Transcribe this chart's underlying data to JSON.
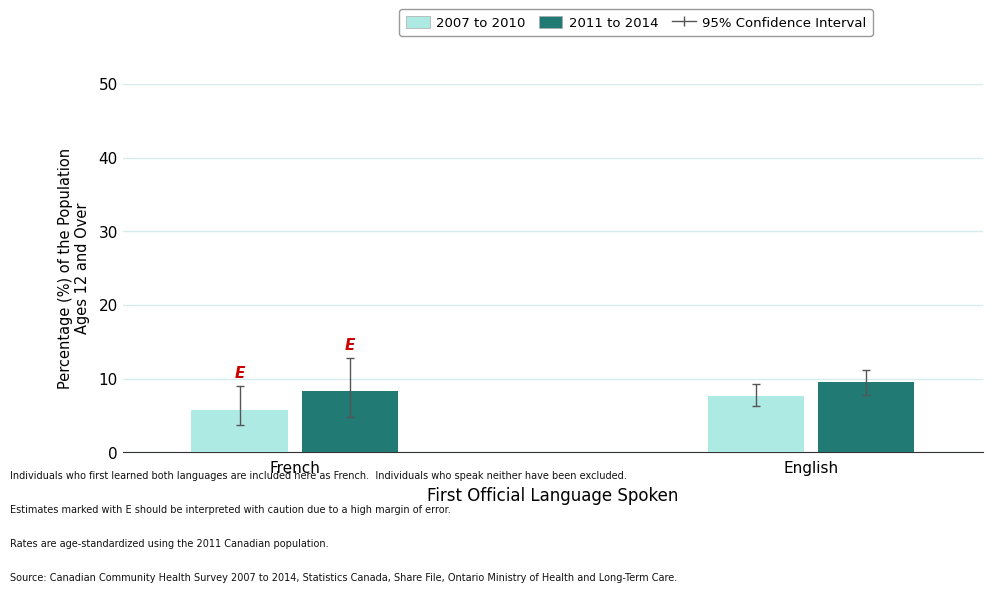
{
  "categories": [
    "French",
    "English"
  ],
  "bar1_values": [
    5.8,
    7.7
  ],
  "bar2_values": [
    8.3,
    9.6
  ],
  "bar1_ci_low": [
    3.7,
    6.3
  ],
  "bar1_ci_high": [
    9.0,
    9.2
  ],
  "bar2_ci_low": [
    4.8,
    7.8
  ],
  "bar2_ci_high": [
    12.8,
    11.1
  ],
  "bar1_color": "#aeeae4",
  "bar2_color": "#217a73",
  "bar1_label": "2007 to 2010",
  "bar2_label": "2011 to 2014",
  "ci_label": "95% Confidence Interval",
  "xlabel": "First Official Language Spoken",
  "ylabel": "Percentage (%) of the Population\nAges 12 and Over",
  "ylim": [
    0,
    50
  ],
  "yticks": [
    0,
    10,
    20,
    30,
    40,
    50
  ],
  "bar_width": 0.28,
  "errorbar_color": "#555555",
  "errorbar_capsize": 3,
  "errorbar_linewidth": 1.0,
  "e_color": "#cc0000",
  "grid_color": "#d4ecec",
  "background_color": "#ffffff",
  "group_positions": [
    1.0,
    2.5
  ],
  "footnote_lines": [
    "Individuals who first learned both languages are included here as French.  Individuals who speak neither have been excluded.",
    "Estimates marked with E should be interpreted with caution due to a high margin of error.",
    "Rates are age-standardized using the 2011 Canadian population.",
    "Source: Canadian Community Health Survey 2007 to 2014, Statistics Canada, Share File, Ontario Ministry of Health and Long-Term Care."
  ]
}
